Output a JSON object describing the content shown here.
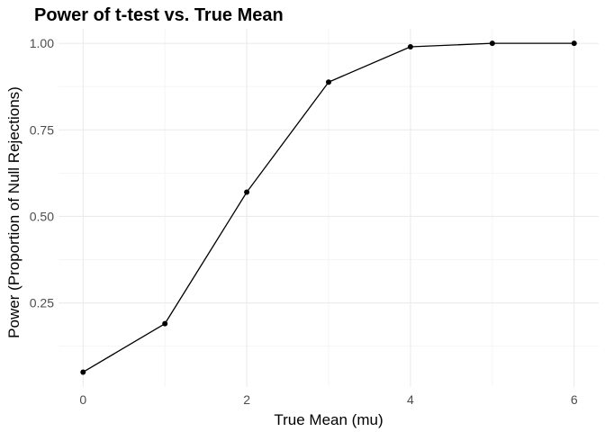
{
  "chart_data": {
    "type": "line",
    "title": "Power of t-test vs. True Mean",
    "xlabel": "True Mean (mu)",
    "ylabel": "Power (Proportion of Null Rejections)",
    "x": [
      0,
      1,
      2,
      3,
      4,
      5,
      6
    ],
    "series": [
      {
        "values": [
          0.05,
          0.19,
          0.57,
          0.888,
          0.99,
          1.0,
          1.0
        ]
      }
    ],
    "xlim": [
      -0.3,
      6.3
    ],
    "ylim": [
      0.007,
      1.042
    ],
    "x_ticks": [
      0,
      2,
      4,
      6
    ],
    "x_tick_labels": [
      "0",
      "2",
      "4",
      "6"
    ],
    "y_ticks": [
      0.25,
      0.5,
      0.75,
      1.0
    ],
    "y_tick_labels": [
      "0.25",
      "0.50",
      "0.75",
      "1.00"
    ],
    "x_minor_ticks": [
      1,
      3,
      5
    ],
    "y_minor_ticks": [
      0.125,
      0.375,
      0.625,
      0.875
    ],
    "grid": true,
    "legend": "none",
    "colors": {
      "line": "#000000",
      "point": "#000000",
      "grid_major": "#ebebeb",
      "grid_minor": "#f5f5f5",
      "tick_text": "#4d4d4d"
    }
  }
}
